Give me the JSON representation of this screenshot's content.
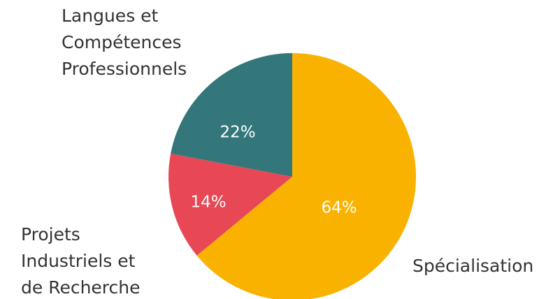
{
  "chart_data": {
    "type": "pie",
    "categories": [
      "Spécialisation",
      "Projets Industriels et de Recherche",
      "Langues et Compétences Professionnels"
    ],
    "values": [
      64,
      14,
      22
    ],
    "value_labels": [
      "64%",
      "14%",
      "22%"
    ],
    "colors": [
      "#f9b200",
      "#e84855",
      "#33777b"
    ]
  }
}
